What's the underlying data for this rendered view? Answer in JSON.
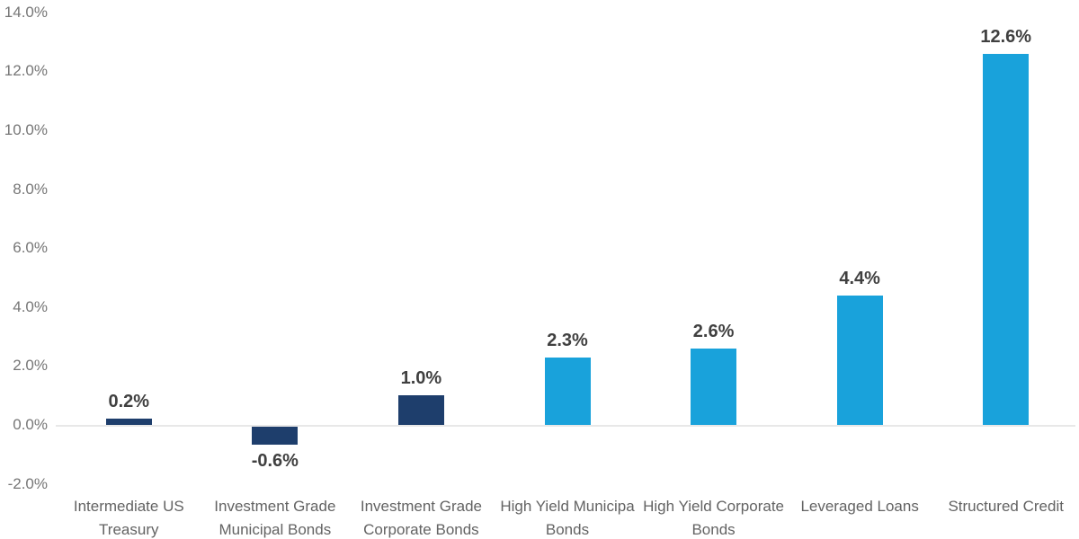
{
  "chart_data": {
    "type": "bar",
    "title": "",
    "xlabel": "",
    "ylabel": "",
    "ylim": [
      -2,
      14
    ],
    "grid": false,
    "legend_position": "none",
    "value_unit": "%",
    "y_ticks": [
      {
        "value": 14,
        "label": "14.0%"
      },
      {
        "value": 12,
        "label": "12.0%"
      },
      {
        "value": 10,
        "label": "10.0%"
      },
      {
        "value": 8,
        "label": "8.0%"
      },
      {
        "value": 6,
        "label": "6.0%"
      },
      {
        "value": 4,
        "label": "4.0%"
      },
      {
        "value": 2,
        "label": "2.0%"
      },
      {
        "value": 0,
        "label": "0.0%"
      },
      {
        "value": -2,
        "label": "-2.0%"
      }
    ],
    "categories": [
      "Intermediate US Treasury",
      "Investment Grade Municipal Bonds",
      "Investment Grade Corporate Bonds",
      "High Yield Municipal Bonds",
      "High Yield Corporate Bonds",
      "Leveraged Loans",
      "Structured Credit"
    ],
    "values": [
      0.2,
      -0.6,
      1.0,
      2.3,
      2.6,
      4.4,
      12.6
    ],
    "bars": [
      {
        "category": "Intermediate US Treasury",
        "display_lines": [
          "Intermediate US",
          "Treasury"
        ],
        "value": 0.2,
        "label": "0.2%",
        "color": "#1E3E6C"
      },
      {
        "category": "Investment Grade Municipal Bonds",
        "display_lines": [
          "Investment Grade",
          "Municipal Bonds"
        ],
        "value": -0.6,
        "label": "-0.6%",
        "color": "#1E3E6C"
      },
      {
        "category": "Investment Grade Corporate Bonds",
        "display_lines": [
          "Investment Grade",
          "Corporate Bonds"
        ],
        "value": 1.0,
        "label": "1.0%",
        "color": "#1E3E6C"
      },
      {
        "category": "High Yield Municipal Bonds",
        "display_lines": [
          "High Yield Municipa",
          "Bonds"
        ],
        "value": 2.3,
        "label": "2.3%",
        "color": "#19A2DB"
      },
      {
        "category": "High Yield Corporate Bonds",
        "display_lines": [
          "High Yield Corporate",
          "Bonds"
        ],
        "value": 2.6,
        "label": "2.6%",
        "color": "#19A2DB"
      },
      {
        "category": "Leveraged Loans",
        "display_lines": [
          "Leveraged Loans"
        ],
        "value": 4.4,
        "label": "4.4%",
        "color": "#19A2DB"
      },
      {
        "category": "Structured Credit",
        "display_lines": [
          "Structured Credit"
        ],
        "value": 12.6,
        "label": "12.6%",
        "color": "#19A2DB"
      }
    ],
    "colors": {
      "navy": "#1E3E6C",
      "light_blue": "#19A2DB",
      "zero_line": "#E8E8E8",
      "data_label_text": "#404040",
      "y_tick_text": "#767676",
      "category_text": "#636363"
    }
  }
}
